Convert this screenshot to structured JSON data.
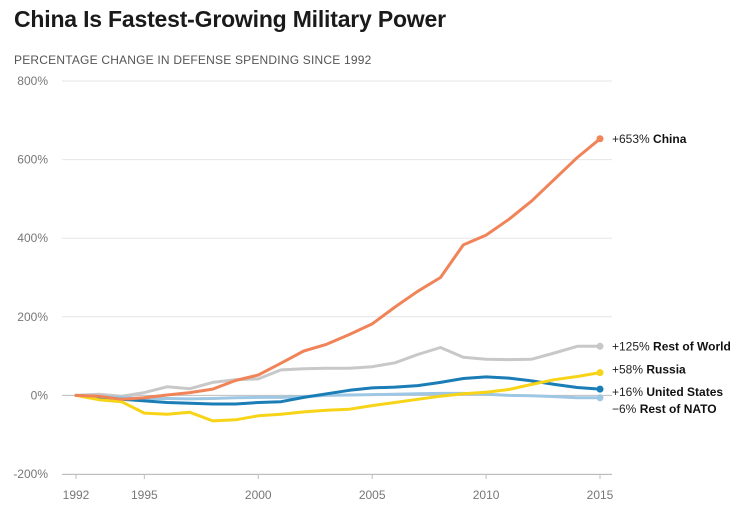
{
  "title": "China Is Fastest-Growing Military Power",
  "subtitle": "PERCENTAGE CHANGE IN DEFENSE SPENDING SINCE 1992",
  "chart_data": {
    "type": "line",
    "title": "China Is Fastest-Growing Military Power",
    "subtitle": "PERCENTAGE CHANGE IN DEFENSE SPENDING SINCE 1992",
    "xlabel": "",
    "ylabel": "",
    "xlim": [
      1992,
      2015
    ],
    "ylim": [
      -200,
      800
    ],
    "y_ticks": [
      -200,
      0,
      200,
      400,
      600,
      800
    ],
    "y_tick_labels": [
      "-200%",
      "0%",
      "200%",
      "400%",
      "600%",
      "800%"
    ],
    "x_ticks": [
      1992,
      1995,
      2000,
      2005,
      2010,
      2015
    ],
    "x_tick_labels": [
      "1992",
      "1995",
      "2000",
      "2005",
      "2010",
      "2015"
    ],
    "grid": "horizontal",
    "legend": "end-of-line labels",
    "x": [
      1992,
      1993,
      1994,
      1995,
      1996,
      1997,
      1998,
      1999,
      2000,
      2001,
      2002,
      2003,
      2004,
      2005,
      2006,
      2007,
      2008,
      2009,
      2010,
      2011,
      2012,
      2013,
      2014,
      2015
    ],
    "series": [
      {
        "name": "China",
        "end_value": "+653%",
        "color": "#F08458",
        "values": [
          0,
          -2,
          -10,
          -6,
          1,
          7,
          16,
          38,
          52,
          82,
          113,
          130,
          155,
          182,
          225,
          265,
          300,
          383,
          408,
          448,
          495,
          550,
          605,
          653
        ]
      },
      {
        "name": "Rest of World",
        "end_value": "+125%",
        "color": "#C8C8C8",
        "values": [
          0,
          3,
          -2,
          7,
          22,
          17,
          33,
          40,
          42,
          65,
          68,
          69,
          69,
          73,
          83,
          104,
          122,
          97,
          92,
          91,
          92,
          108,
          125,
          125
        ]
      },
      {
        "name": "Russia",
        "end_value": "+58%",
        "color": "#F7D417",
        "values": [
          0,
          -11,
          -16,
          -45,
          -48,
          -43,
          -65,
          -62,
          -52,
          -48,
          -42,
          -38,
          -35,
          -26,
          -18,
          -10,
          -2,
          4,
          8,
          15,
          28,
          40,
          48,
          58
        ]
      },
      {
        "name": "United States",
        "end_value": "+16%",
        "color": "#1A7DB6",
        "values": [
          0,
          -4,
          -10,
          -14,
          -18,
          -20,
          -22,
          -22,
          -18,
          -16,
          -5,
          4,
          13,
          19,
          21,
          25,
          33,
          43,
          47,
          44,
          37,
          28,
          20,
          16
        ]
      },
      {
        "name": "Rest of NATO",
        "end_value": "−6%",
        "color": "#9EC7E3",
        "values": [
          0,
          -3,
          -5,
          -8,
          -8,
          -9,
          -8,
          -6,
          -5,
          -5,
          -3,
          0,
          1,
          2,
          3,
          4,
          5,
          5,
          3,
          0,
          -1,
          -3,
          -6,
          -6
        ]
      }
    ]
  }
}
